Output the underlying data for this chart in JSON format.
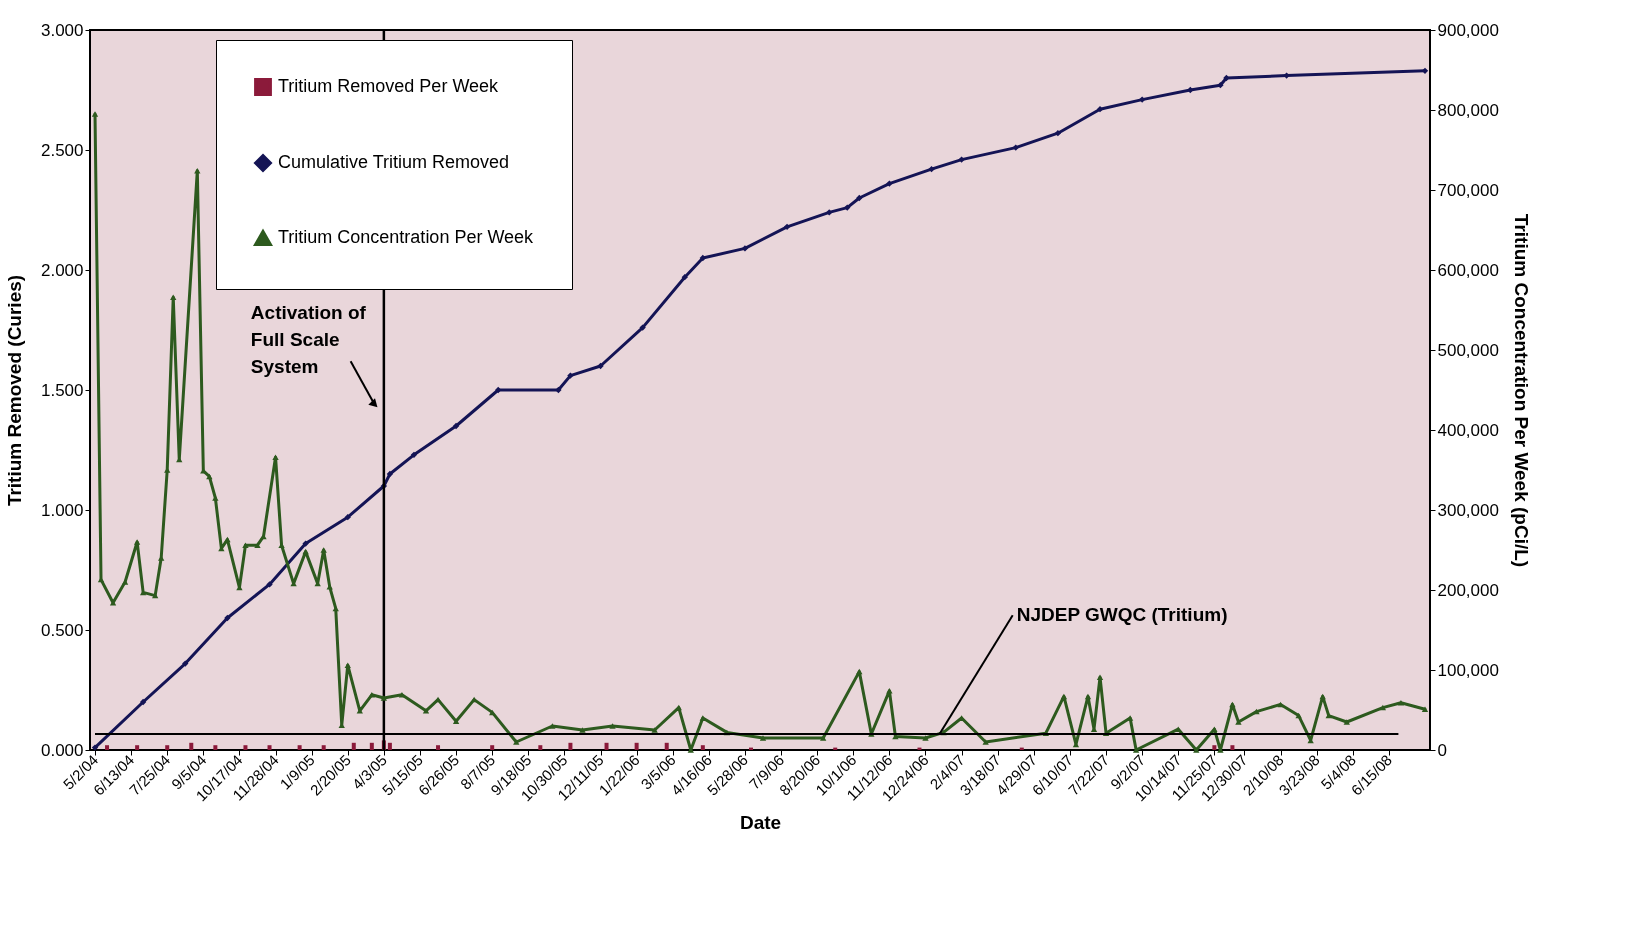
{
  "chart_data": {
    "type": "line",
    "xlabel": "Date",
    "ylabel": "Tritium Removed (Curies)",
    "y2label": "Tritium Concentration Per Week (pCi/L)",
    "xlim": [
      "2004-05-02",
      "2008-07-27"
    ],
    "xticks": [
      {
        "value": "2004-05-02",
        "label": "5/2/04"
      },
      {
        "value": "2004-06-13",
        "label": "6/13/04"
      },
      {
        "value": "2004-07-25",
        "label": "7/25/04"
      },
      {
        "value": "2004-09-05",
        "label": "9/5/04"
      },
      {
        "value": "2004-10-17",
        "label": "10/17/04"
      },
      {
        "value": "2004-11-28",
        "label": "11/28/04"
      },
      {
        "value": "2005-01-09",
        "label": "1/9/05"
      },
      {
        "value": "2005-02-20",
        "label": "2/20/05"
      },
      {
        "value": "2005-04-03",
        "label": "4/3/05"
      },
      {
        "value": "2005-05-15",
        "label": "5/15/05"
      },
      {
        "value": "2005-06-26",
        "label": "6/26/05"
      },
      {
        "value": "2005-08-07",
        "label": "8/7/05"
      },
      {
        "value": "2005-09-18",
        "label": "9/18/05"
      },
      {
        "value": "2005-10-30",
        "label": "10/30/05"
      },
      {
        "value": "2005-12-11",
        "label": "12/11/05"
      },
      {
        "value": "2006-01-22",
        "label": "1/22/06"
      },
      {
        "value": "2006-03-05",
        "label": "3/5/06"
      },
      {
        "value": "2006-04-16",
        "label": "4/16/06"
      },
      {
        "value": "2006-05-28",
        "label": "5/28/06"
      },
      {
        "value": "2006-07-09",
        "label": "7/9/06"
      },
      {
        "value": "2006-08-20",
        "label": "8/20/06"
      },
      {
        "value": "2006-10-01",
        "label": "10/1/06"
      },
      {
        "value": "2006-11-12",
        "label": "11/12/06"
      },
      {
        "value": "2006-12-24",
        "label": "12/24/06"
      },
      {
        "value": "2007-02-04",
        "label": "2/4/07"
      },
      {
        "value": "2007-03-18",
        "label": "3/18/07"
      },
      {
        "value": "2007-04-29",
        "label": "4/29/07"
      },
      {
        "value": "2007-06-10",
        "label": "6/10/07"
      },
      {
        "value": "2007-07-22",
        "label": "7/22/07"
      },
      {
        "value": "2007-09-02",
        "label": "9/2/07"
      },
      {
        "value": "2007-10-14",
        "label": "10/14/07"
      },
      {
        "value": "2007-11-25",
        "label": "11/25/07"
      },
      {
        "value": "2007-12-30",
        "label": "12/30/07"
      },
      {
        "value": "2008-02-10",
        "label": "2/10/08"
      },
      {
        "value": "2008-03-23",
        "label": "3/23/08"
      },
      {
        "value": "2008-05-04",
        "label": "5/4/08"
      },
      {
        "value": "2008-06-15",
        "label": "6/15/08"
      }
    ],
    "ylim": [
      0,
      3
    ],
    "yticks": [
      {
        "value": 0,
        "label": "0.000"
      },
      {
        "value": 0.5,
        "label": "0.500"
      },
      {
        "value": 1,
        "label": "1.000"
      },
      {
        "value": 1.5,
        "label": "1.500"
      },
      {
        "value": 2,
        "label": "2.000"
      },
      {
        "value": 2.5,
        "label": "2.500"
      },
      {
        "value": 3,
        "label": "3.000"
      }
    ],
    "y2lim": [
      0,
      900000
    ],
    "y2ticks": [
      {
        "value": 0,
        "label": "0"
      },
      {
        "value": 100000,
        "label": "100,000"
      },
      {
        "value": 200000,
        "label": "200,000"
      },
      {
        "value": 300000,
        "label": "300,000"
      },
      {
        "value": 400000,
        "label": "400,000"
      },
      {
        "value": 500000,
        "label": "500,000"
      },
      {
        "value": 600000,
        "label": "600,000"
      },
      {
        "value": 700000,
        "label": "700,000"
      },
      {
        "value": 800000,
        "label": "800,000"
      },
      {
        "value": 900000,
        "label": "900,000"
      }
    ],
    "grid": false,
    "legend": "top left",
    "ref_lines": [
      {
        "axis": "x",
        "value": "2005-04-03",
        "label": "Activation of Full Scale System",
        "color": "#000000"
      },
      {
        "axis": "y2",
        "value": 20000,
        "label": "NJDEP GWQC (Tritium)",
        "color": "#000000"
      }
    ],
    "series": [
      {
        "name": "Tritium Removed Per Week",
        "type": "bar",
        "color": "#8b1a3a",
        "axis": "y",
        "x": [
          "2004-05-16",
          "2004-06-20",
          "2004-07-25",
          "2004-08-22",
          "2004-09-19",
          "2004-10-24",
          "2004-11-21",
          "2004-12-26",
          "2005-01-23",
          "2005-02-27",
          "2005-03-20",
          "2005-04-03",
          "2005-04-10",
          "2005-06-05",
          "2005-08-07",
          "2005-10-02",
          "2005-11-06",
          "2005-12-18",
          "2006-01-22",
          "2006-02-26",
          "2006-04-09",
          "2006-06-04",
          "2006-09-10",
          "2006-12-17",
          "2007-04-15",
          "2007-08-26",
          "2007-11-25",
          "2007-12-16"
        ],
        "values": [
          0.02,
          0.02,
          0.02,
          0.03,
          0.02,
          0.02,
          0.02,
          0.02,
          0.02,
          0.03,
          0.03,
          0.04,
          0.03,
          0.02,
          0.02,
          0.02,
          0.03,
          0.03,
          0.03,
          0.03,
          0.02,
          0.01,
          0.01,
          0.01,
          0.01,
          null,
          0.02,
          0.02
        ]
      },
      {
        "name": "Cumulative Tritium Removed",
        "type": "line",
        "color": "#141455",
        "axis": "y",
        "marker": "diamond",
        "line_style": "solid",
        "x": [
          "2004-05-02",
          "2004-06-27",
          "2004-08-15",
          "2004-10-03",
          "2004-11-21",
          "2005-01-02",
          "2005-02-20",
          "2005-04-03",
          "2005-04-10",
          "2005-05-08",
          "2005-06-26",
          "2005-08-14",
          "2005-10-23",
          "2005-11-06",
          "2005-12-11",
          "2006-01-29",
          "2006-03-19",
          "2006-04-09",
          "2006-05-28",
          "2006-07-16",
          "2006-09-03",
          "2006-09-24",
          "2006-10-08",
          "2006-11-12",
          "2006-12-31",
          "2007-02-04",
          "2007-04-08",
          "2007-05-27",
          "2007-07-15",
          "2007-09-02",
          "2007-10-28",
          "2007-12-02",
          "2007-12-09",
          "2008-02-17",
          "2008-07-27"
        ],
        "values": [
          0.01,
          0.2,
          0.36,
          0.55,
          0.69,
          0.86,
          0.97,
          1.1,
          1.15,
          1.23,
          1.35,
          1.5,
          1.5,
          1.56,
          1.6,
          1.76,
          1.97,
          2.05,
          2.09,
          2.18,
          2.24,
          2.26,
          2.3,
          2.36,
          2.42,
          2.46,
          2.51,
          2.57,
          2.67,
          2.71,
          2.75,
          2.77,
          2.8,
          2.81,
          2.83
        ]
      },
      {
        "name": "Tritium Concentration Per Week",
        "type": "line",
        "color": "#2d5a1e",
        "axis": "y2",
        "marker": "triangle",
        "line_style": "solid",
        "x": [
          "2004-05-02",
          "2004-05-09",
          "2004-05-23",
          "2004-06-06",
          "2004-06-20",
          "2004-06-27",
          "2004-07-11",
          "2004-07-18",
          "2004-07-25",
          "2004-08-01",
          "2004-08-08",
          "2004-08-29",
          "2004-09-05",
          "2004-09-12",
          "2004-09-19",
          "2004-09-26",
          "2004-10-03",
          "2004-10-17",
          "2004-10-24",
          "2004-11-07",
          "2004-11-14",
          "2004-11-28",
          "2004-12-05",
          "2004-12-19",
          "2005-01-02",
          "2005-01-16",
          "2005-01-23",
          "2005-01-30",
          "2005-02-06",
          "2005-02-13",
          "2005-02-20",
          "2005-03-06",
          "2005-03-20",
          "2005-04-03",
          "2005-04-24",
          "2005-05-22",
          "2005-06-05",
          "2005-06-26",
          "2005-07-17",
          "2005-08-07",
          "2005-09-04",
          "2005-10-16",
          "2005-11-20",
          "2005-12-25",
          "2006-02-12",
          "2006-03-12",
          "2006-03-26",
          "2006-04-09",
          "2006-05-07",
          "2006-06-18",
          "2006-08-27",
          "2006-10-08",
          "2006-10-22",
          "2006-11-12",
          "2006-11-19",
          "2006-12-24",
          "2007-01-14",
          "2007-02-04",
          "2007-03-04",
          "2007-05-13",
          "2007-06-03",
          "2007-06-17",
          "2007-07-01",
          "2007-07-08",
          "2007-07-15",
          "2007-07-22",
          "2007-08-19",
          "2007-08-26",
          "2007-10-14",
          "2007-11-04",
          "2007-11-25",
          "2007-12-02",
          "2007-12-16",
          "2007-12-23",
          "2008-01-13",
          "2008-02-10",
          "2008-03-02",
          "2008-03-16",
          "2008-03-30",
          "2008-04-06",
          "2008-04-27",
          "2008-06-08",
          "2008-06-29",
          "2008-07-27"
        ],
        "values": [
          795000,
          213000,
          184000,
          210000,
          260000,
          197000,
          193000,
          240000,
          350000,
          566000,
          363000,
          724000,
          349000,
          342000,
          315000,
          252000,
          263000,
          203000,
          256000,
          256000,
          267000,
          366000,
          256000,
          208000,
          248000,
          208000,
          250000,
          204000,
          177000,
          31000,
          106000,
          49000,
          69000,
          65000,
          69000,
          49000,
          63000,
          36000,
          63000,
          47000,
          10000,
          30000,
          25000,
          30000,
          25000,
          53000,
          0,
          40000,
          22000,
          15000,
          15000,
          98000,
          20000,
          74000,
          17000,
          15000,
          22000,
          40000,
          10000,
          21000,
          67000,
          7000,
          67000,
          26000,
          91000,
          21000,
          40000,
          0,
          26000,
          0,
          26000,
          0,
          57000,
          35000,
          48000,
          57000,
          43000,
          12000,
          67000,
          43000,
          35000,
          53000,
          59000,
          51000
        ]
      }
    ]
  }
}
